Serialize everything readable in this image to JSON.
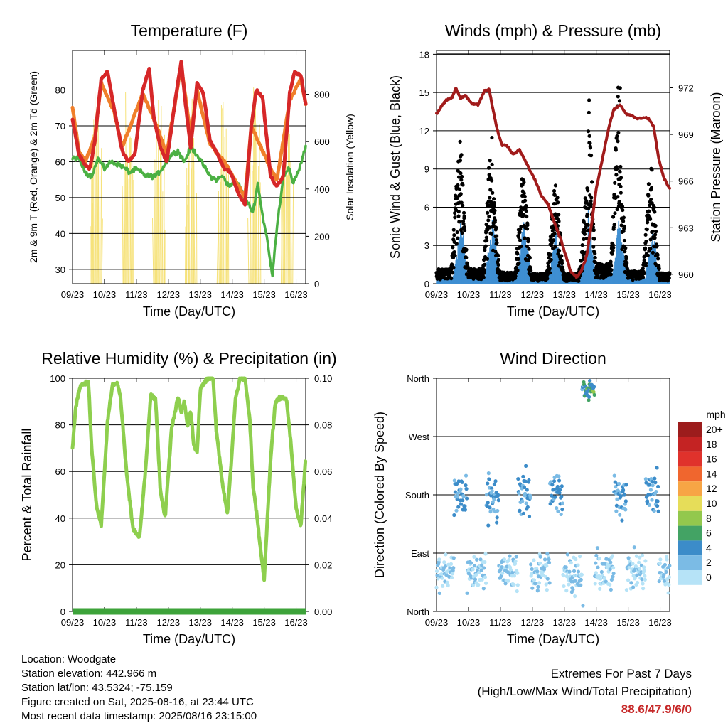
{
  "x_ticks": [
    "09/23",
    "10/23",
    "11/23",
    "12/23",
    "13/23",
    "14/23",
    "15/23",
    "16/23"
  ],
  "x_label": "Time (Day/UTC)",
  "charts": {
    "temperature": {
      "title": "Temperature (F)",
      "ylabel_left": "2m & 9m T (Red, Orange) & 2m Td (Green)",
      "ylabel_right": "Solar Insolation (Yellow)",
      "yticks_left": [
        "30",
        "40",
        "50",
        "60",
        "70",
        "80"
      ],
      "yticks_right": [
        "0",
        "200",
        "400",
        "600",
        "800"
      ]
    },
    "wind": {
      "title": "Winds (mph) & Pressure (mb)",
      "ylabel_left": "Sonic Wind & Gust (Blue, Black)",
      "ylabel_right": "Station Pressure (Maroon)",
      "yticks_left": [
        "0",
        "3",
        "6",
        "9",
        "12",
        "15",
        "18"
      ],
      "yticks_right": [
        "960",
        "963",
        "966",
        "969",
        "972"
      ]
    },
    "humidity": {
      "title": "Relative Humidity (%) & Precipitation (in)",
      "ylabel_left": "Percent & Total Rainfall",
      "yticks_left": [
        "0",
        "20",
        "40",
        "60",
        "80",
        "100"
      ],
      "yticks_right": [
        "0.00",
        "0.02",
        "0.04",
        "0.06",
        "0.08",
        "0.10"
      ]
    },
    "direction": {
      "title": "Wind Direction",
      "ylabel_left": "Direction (Colored By Speed)",
      "yticks_left": [
        "North",
        "East",
        "South",
        "West",
        "North"
      ],
      "legend_title": "mph",
      "legend_labels": [
        "20+",
        "18",
        "16",
        "14",
        "12",
        "10",
        "8",
        "6",
        "4",
        "2",
        "0"
      ],
      "legend_colors": [
        "#9c1c1c",
        "#c42323",
        "#e0322c",
        "#f0662e",
        "#f7a545",
        "#e6dd59",
        "#93c84d",
        "#43a364",
        "#3c8cc9",
        "#7bbbe5",
        "#b6e3f7"
      ]
    }
  },
  "chart_data": [
    {
      "type": "line",
      "title": "Temperature (F)",
      "ylim": [
        26,
        91
      ],
      "y2lim": [
        0,
        985
      ],
      "x_days": [
        9,
        16.3
      ],
      "series": [
        {
          "name": "2m T",
          "color": "#d62728",
          "x": [
            9.0,
            9.2,
            9.4,
            9.55,
            9.7,
            9.9,
            10.1,
            10.3,
            10.55,
            10.75,
            10.95,
            11.2,
            11.4,
            11.55,
            11.75,
            11.95,
            12.2,
            12.4,
            12.55,
            12.7,
            12.9,
            13.1,
            13.3,
            13.55,
            13.75,
            13.95,
            14.2,
            14.4,
            14.6,
            14.75,
            14.95,
            15.2,
            15.4,
            15.6,
            15.8,
            15.95,
            16.15,
            16.3
          ],
          "y": [
            72,
            62,
            59,
            58,
            66,
            83,
            85,
            75,
            63,
            60,
            62,
            80,
            86,
            72,
            64,
            60,
            76,
            88,
            75,
            64,
            82,
            79,
            66,
            62,
            58,
            57,
            51,
            48,
            70,
            80,
            78,
            56,
            53,
            56,
            79,
            85,
            84,
            76
          ]
        },
        {
          "name": "9m T",
          "color": "#f07f2a",
          "x": [
            9.0,
            9.2,
            9.4,
            9.7,
            9.9,
            10.3,
            10.55,
            11.2,
            11.55,
            11.95,
            12.4,
            12.7,
            12.9,
            13.3,
            13.75,
            14.4,
            14.6,
            15.2,
            15.4,
            15.8,
            16.15,
            16.3
          ],
          "y": [
            75,
            63,
            60,
            67,
            82,
            74,
            64,
            79,
            72,
            62,
            87,
            67,
            80,
            65,
            60,
            50,
            70,
            58,
            55,
            77,
            83,
            76
          ]
        },
        {
          "name": "2m Td",
          "color": "#4bb043",
          "x": [
            9.0,
            9.2,
            9.4,
            9.6,
            9.8,
            10.0,
            10.2,
            10.5,
            10.8,
            11.0,
            11.3,
            11.6,
            11.8,
            12.1,
            12.3,
            12.5,
            12.7,
            12.9,
            13.1,
            13.3,
            13.5,
            13.7,
            13.9,
            14.1,
            14.3,
            14.45,
            14.65,
            14.8,
            14.95,
            15.1,
            15.25,
            15.4,
            15.6,
            15.8,
            15.9,
            16.1,
            16.3
          ],
          "y": [
            61,
            61,
            57,
            56,
            61,
            58,
            60,
            59,
            57,
            58,
            56,
            56,
            58,
            62,
            63,
            60,
            64,
            62,
            59,
            56,
            55,
            56,
            53,
            55,
            52,
            49,
            46,
            54,
            45,
            38,
            28,
            42,
            56,
            58,
            54,
            58,
            64
          ]
        }
      ],
      "solar_peaks_days": [
        9.75,
        10.75,
        11.73,
        12.72,
        13.72,
        14.72,
        15.72
      ]
    },
    {
      "type": "line",
      "title": "Winds (mph) & Pressure (mb)",
      "ylim": [
        0,
        18.3
      ],
      "y2lim": [
        959.4,
        974.4
      ],
      "series": [
        {
          "name": "Station Pressure",
          "color": "#a11b1b",
          "x": [
            9.0,
            9.15,
            9.3,
            9.5,
            9.6,
            9.75,
            9.9,
            10.1,
            10.3,
            10.5,
            10.65,
            10.75,
            10.9,
            11.05,
            11.2,
            11.4,
            11.6,
            11.8,
            11.95,
            12.1,
            12.3,
            12.5,
            12.7,
            12.9,
            13.05,
            13.2,
            13.4,
            13.55,
            13.7,
            13.85,
            14.0,
            14.2,
            14.4,
            14.55,
            14.75,
            14.95,
            15.1,
            15.3,
            15.5,
            15.65,
            15.8,
            15.95,
            16.1,
            16.3
          ],
          "y": [
            970.3,
            970.8,
            971.2,
            971.4,
            972.0,
            971.3,
            971.5,
            971.0,
            970.9,
            971.8,
            971.9,
            970.8,
            969.3,
            968.3,
            968.3,
            967.7,
            968.0,
            967.2,
            966.6,
            966.0,
            965.0,
            964.5,
            963.3,
            962.2,
            961.2,
            960.2,
            959.8,
            960.3,
            961.2,
            963.2,
            965.5,
            967.5,
            969.5,
            970.6,
            970.9,
            970.3,
            970.2,
            970.0,
            970.1,
            970.0,
            969.5,
            967.5,
            966.3,
            965.5
          ]
        },
        {
          "name": "Gust",
          "color": "#000000",
          "daily_peaks": [
            11.5,
            11.6,
            9.0,
            8.0,
            7.8,
            16.0,
            9.8,
            8.5
          ]
        },
        {
          "name": "Sonic Wind",
          "color": "#3f8fd2",
          "daily_peaks": [
            4.0,
            5.0,
            5.0,
            4.2,
            3.5,
            6.0,
            3.6,
            4.2
          ]
        }
      ]
    },
    {
      "type": "line",
      "title": "Relative Humidity (%) & Precipitation (in)",
      "ylim": [
        0,
        100
      ],
      "y2lim": [
        0,
        0.1
      ],
      "series": [
        {
          "name": "Relative Humidity",
          "color": "#8ecf4e",
          "x": [
            9.0,
            9.1,
            9.25,
            9.4,
            9.5,
            9.6,
            9.75,
            9.9,
            10.1,
            10.25,
            10.4,
            10.5,
            10.7,
            10.9,
            11.1,
            11.3,
            11.45,
            11.6,
            11.75,
            11.9,
            12.1,
            12.3,
            12.4,
            12.5,
            12.6,
            12.7,
            12.8,
            12.9,
            13.0,
            13.2,
            13.4,
            13.5,
            13.7,
            13.85,
            13.95,
            14.1,
            14.25,
            14.4,
            14.55,
            14.65,
            14.8,
            14.9,
            15.0,
            15.2,
            15.35,
            15.55,
            15.7,
            15.85,
            16.0,
            16.15,
            16.3
          ],
          "y": [
            70,
            88,
            97,
            98,
            98,
            70,
            45,
            37,
            82,
            97,
            98,
            92,
            58,
            35,
            32,
            63,
            93,
            91,
            52,
            40,
            78,
            92,
            86,
            90,
            80,
            86,
            71,
            68,
            95,
            100,
            100,
            78,
            54,
            42,
            60,
            91,
            100,
            100,
            82,
            54,
            38,
            25,
            14,
            65,
            90,
            92,
            91,
            70,
            44,
            37,
            66
          ]
        },
        {
          "name": "Total Precipitation",
          "color": "#3da33a",
          "x": [
            9.0,
            16.3
          ],
          "y": [
            0,
            0
          ]
        }
      ]
    },
    {
      "type": "scatter",
      "title": "Wind Direction",
      "ylim": [
        0,
        360
      ],
      "note": "wind direction points colored by speed (mph)"
    }
  ],
  "info": {
    "location": "Location: Woodgate",
    "elevation": "Station elevation: 442.966 m",
    "latlon": "Station lat/lon: 43.5324; -75.159",
    "created": "Figure created on Sat, 2025-08-16, at 23:44 UTC",
    "recent": "Most recent data timestamp: 2025/08/16 23:15:00"
  },
  "extremes": {
    "line1": "Extremes For Past 7 Days",
    "line2": "(High/Low/Max Wind/Total Precipitation)",
    "value": "88.6/47.9/6/0"
  }
}
